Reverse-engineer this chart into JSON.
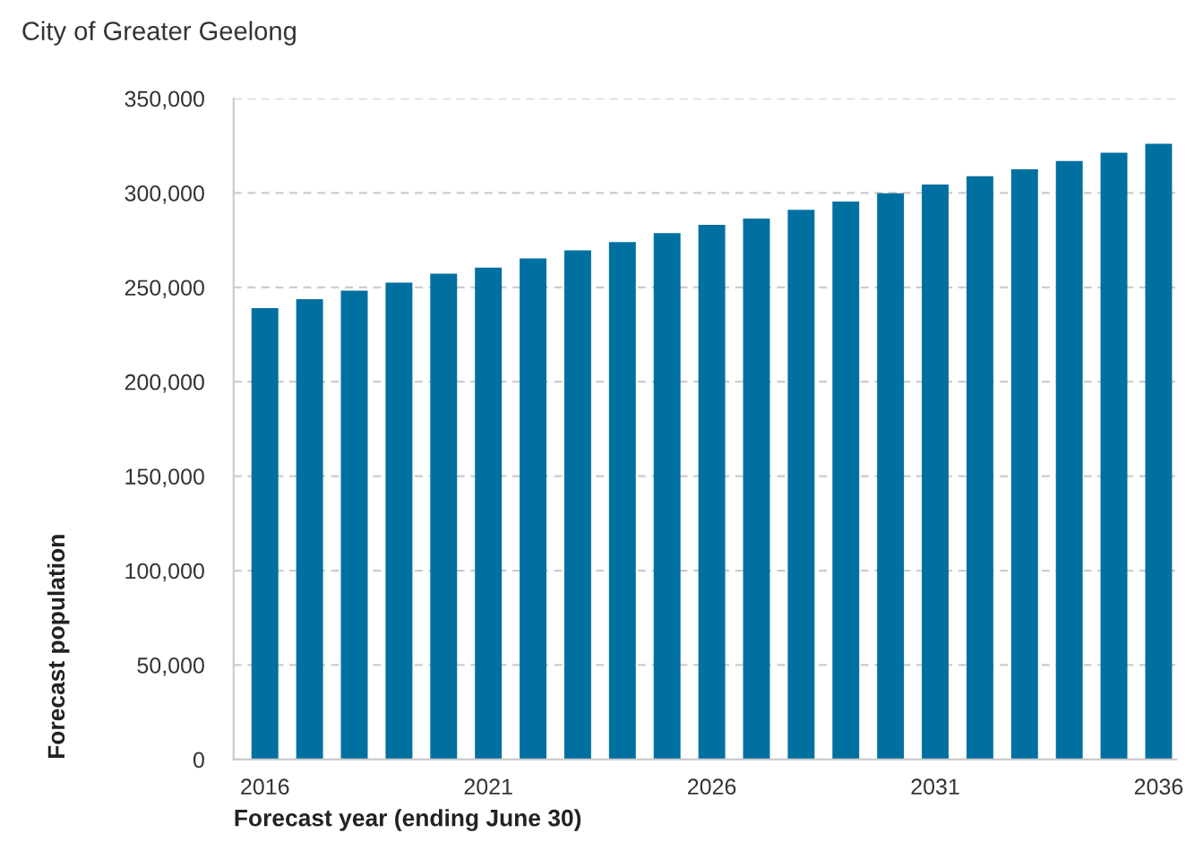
{
  "chart_data": {
    "type": "bar",
    "subtitle": "City of Greater Geelong",
    "xlabel": "Forecast year (ending June 30)",
    "ylabel": "Forecast population",
    "categories": [
      "2016",
      null,
      null,
      null,
      null,
      "2021",
      null,
      null,
      null,
      null,
      "2026",
      null,
      null,
      null,
      null,
      "2031",
      null,
      null,
      null,
      null,
      "2036"
    ],
    "values": [
      239000,
      243800,
      248200,
      252500,
      257300,
      260500,
      265300,
      269600,
      274000,
      278700,
      283100,
      286400,
      291100,
      295500,
      299800,
      304500,
      308900,
      312500,
      316900,
      321300,
      326000
    ],
    "color": "#0070a0",
    "ylim": [
      0,
      350000
    ],
    "yticks": [
      {
        "value": 0,
        "label": "0"
      },
      {
        "value": 50000,
        "label": "50,000"
      },
      {
        "value": 100000,
        "label": "100,000"
      },
      {
        "value": 150000,
        "label": "150,000"
      },
      {
        "value": 200000,
        "label": "200,000"
      },
      {
        "value": 250000,
        "label": "250,000"
      },
      {
        "value": 300000,
        "label": "300,000"
      },
      {
        "value": 350000,
        "label": "350,000"
      }
    ],
    "grid": "y",
    "legend": false
  }
}
